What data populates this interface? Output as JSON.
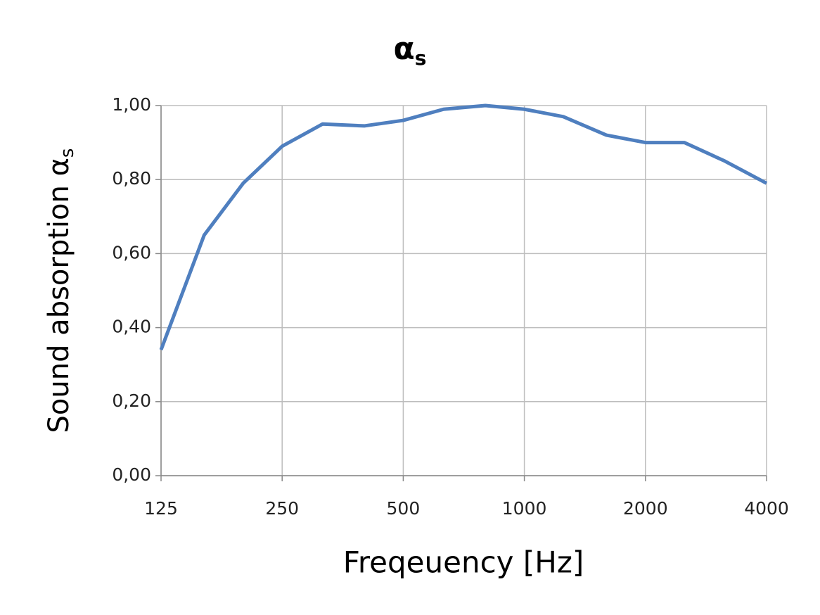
{
  "chart_data": {
    "type": "line",
    "title": {
      "text": "α",
      "subscript": "s"
    },
    "ylabel": {
      "text": "Sound absorption α",
      "subscript": "s"
    },
    "xlabel": "Freqeuency [Hz]",
    "x": [
      125,
      160,
      200,
      250,
      315,
      400,
      500,
      630,
      800,
      1000,
      1250,
      1600,
      2000,
      2500,
      3150,
      4000
    ],
    "values": [
      0.34,
      0.65,
      0.79,
      0.89,
      0.95,
      0.945,
      0.96,
      0.99,
      1.0,
      0.99,
      0.97,
      0.92,
      0.9,
      0.9,
      0.85,
      0.79
    ],
    "color": "#4f7fbf",
    "xlim": [
      125,
      4000
    ],
    "xticks": [
      125,
      250,
      500,
      1000,
      2000,
      4000
    ],
    "log_x": true,
    "ylim": [
      0,
      1
    ],
    "yticks": [
      {
        "value": 0,
        "label": "0,00"
      },
      {
        "value": 0.2,
        "label": "0,20"
      },
      {
        "value": 0.4,
        "label": "0,40"
      },
      {
        "value": 0.6,
        "label": "0,60"
      },
      {
        "value": 0.8,
        "label": "0,80"
      },
      {
        "value": 1,
        "label": "1,00"
      }
    ],
    "grid": true
  }
}
